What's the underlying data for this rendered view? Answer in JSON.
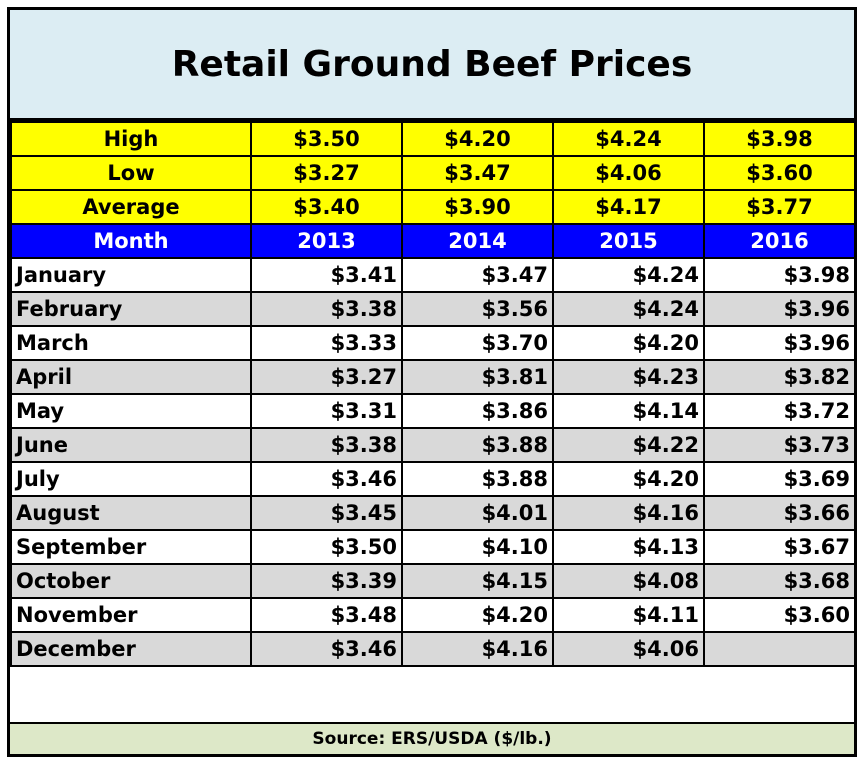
{
  "chart_data": {
    "type": "table",
    "title": "Retail Ground Beef Prices",
    "source": "Source:  ERS/USDA ($/lb.)",
    "stats": [
      {
        "label": "High",
        "values": [
          "$3.50",
          "$4.20",
          "$4.24",
          "$3.98"
        ]
      },
      {
        "label": "Low",
        "values": [
          "$3.27",
          "$3.47",
          "$4.06",
          "$3.60"
        ]
      },
      {
        "label": "Average",
        "values": [
          "$3.40",
          "$3.90",
          "$4.17",
          "$3.77"
        ]
      }
    ],
    "header": {
      "label": "Month",
      "years": [
        "2013",
        "2014",
        "2015",
        "2016"
      ]
    },
    "rows": [
      {
        "month": "January",
        "values": [
          "$3.41",
          "$3.47",
          "$4.24",
          "$3.98"
        ]
      },
      {
        "month": "February",
        "values": [
          "$3.38",
          "$3.56",
          "$4.24",
          "$3.96"
        ]
      },
      {
        "month": "March",
        "values": [
          "$3.33",
          "$3.70",
          "$4.20",
          "$3.96"
        ]
      },
      {
        "month": "April",
        "values": [
          "$3.27",
          "$3.81",
          "$4.23",
          "$3.82"
        ]
      },
      {
        "month": "May",
        "values": [
          "$3.31",
          "$3.86",
          "$4.14",
          "$3.72"
        ]
      },
      {
        "month": "June",
        "values": [
          "$3.38",
          "$3.88",
          "$4.22",
          "$3.73"
        ]
      },
      {
        "month": "July",
        "values": [
          "$3.46",
          "$3.88",
          "$4.20",
          "$3.69"
        ]
      },
      {
        "month": "August",
        "values": [
          "$3.45",
          "$4.01",
          "$4.16",
          "$3.66"
        ]
      },
      {
        "month": "September",
        "values": [
          "$3.50",
          "$4.10",
          "$4.13",
          "$3.67"
        ]
      },
      {
        "month": "October",
        "values": [
          "$3.39",
          "$4.15",
          "$4.08",
          "$3.68"
        ]
      },
      {
        "month": "November",
        "values": [
          "$3.48",
          "$4.20",
          "$4.11",
          "$3.60"
        ]
      },
      {
        "month": "December",
        "values": [
          "$3.46",
          "$4.16",
          "$4.06",
          ""
        ]
      }
    ]
  },
  "colors": {
    "title_bg": "#dcedf3",
    "stats_bg": "#ffff00",
    "header_bg": "#0000ff",
    "header_text": "#ffffff",
    "alt_row_bg": "#d9d9d9",
    "source_bg": "#dde8c8"
  }
}
